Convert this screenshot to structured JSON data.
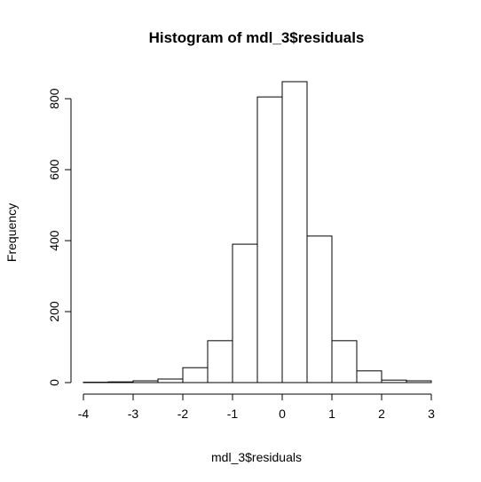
{
  "chart_data": {
    "type": "bar",
    "title": "Histogram of mdl_3$residuals",
    "xlabel": "mdl_3$residuals",
    "ylabel": "Frequency",
    "breaks": [
      -4,
      -3.5,
      -3,
      -2.5,
      -2,
      -1.5,
      -1,
      -0.5,
      0,
      0.5,
      1,
      1.5,
      2,
      2.5,
      3
    ],
    "values": [
      1,
      2,
      5,
      10,
      42,
      118,
      390,
      805,
      848,
      413,
      118,
      33,
      7,
      5
    ],
    "xlim": [
      -4,
      3
    ],
    "ylim": [
      0,
      848
    ],
    "x_ticks": [
      -4,
      -3,
      -2,
      -1,
      0,
      1,
      2,
      3
    ],
    "x_tick_labels": [
      "-4",
      "-3",
      "-2",
      "-1",
      "0",
      "1",
      "2",
      "3"
    ],
    "y_ticks": [
      0,
      200,
      400,
      600,
      800
    ],
    "y_tick_labels": [
      "0",
      "200",
      "400",
      "600",
      "800"
    ],
    "grid": false,
    "bar_fill": "#ffffff",
    "bar_stroke": "#000000"
  }
}
